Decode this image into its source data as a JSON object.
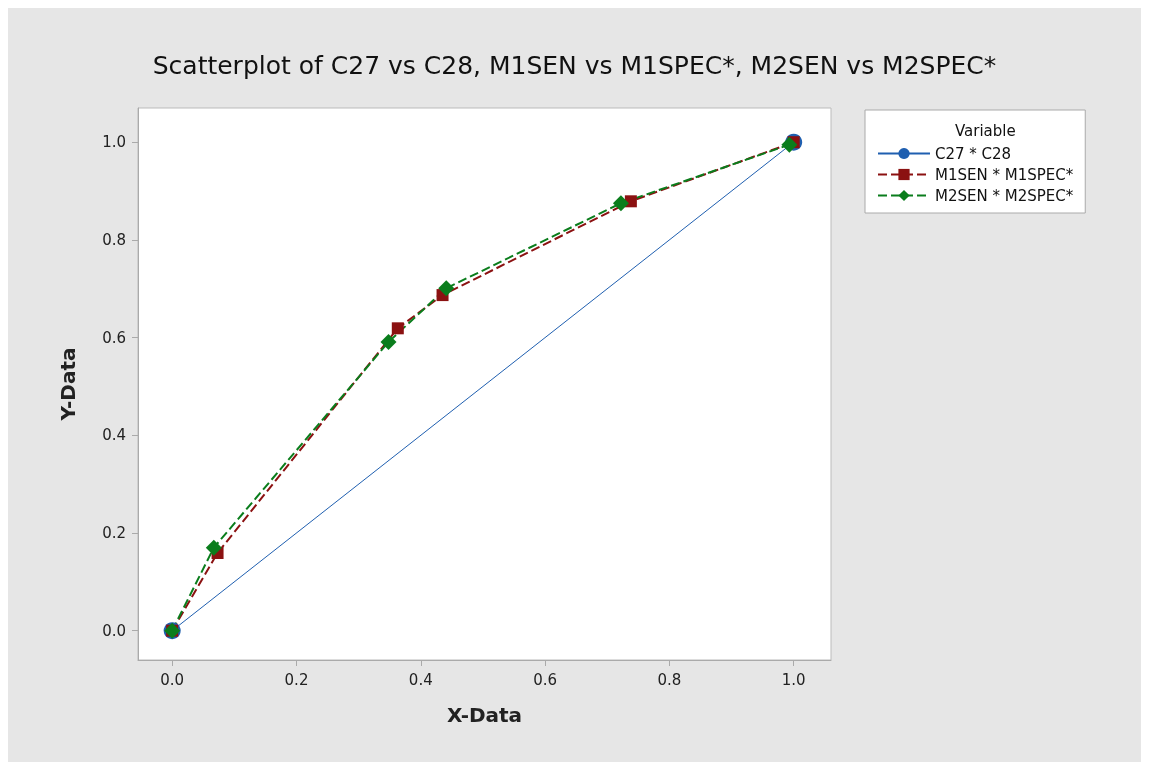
{
  "chart_data": {
    "type": "line",
    "title": "Scatterplot of C27 vs C28, M1SEN vs M1SPEC*, M2SEN vs M2SPEC*",
    "xlabel": "X-Data",
    "ylabel": "Y-Data",
    "legend_title": "Variable",
    "legend": "top right",
    "grid": false,
    "xlim": [
      -0.055,
      1.06
    ],
    "xticks": [
      {
        "value": 0,
        "label": "0.0"
      },
      0.2,
      0.4,
      0.6,
      0.8,
      {
        "value": 1,
        "label": "1.0"
      }
    ],
    "ylim": [
      -0.06,
      1.07
    ],
    "yticks": [
      {
        "value": 0,
        "label": "0.0"
      },
      0.2,
      0.4,
      0.6,
      0.8,
      {
        "value": 1,
        "label": "1.0"
      }
    ],
    "series": [
      {
        "name": "C27 * C28",
        "color": "#1f5fb0",
        "marker": "circle",
        "line_style": "solid",
        "x": [
          0,
          1
        ],
        "values": [
          0,
          1
        ]
      },
      {
        "name": "M1SEN * M1SPEC*",
        "color": "#8b1111",
        "marker": "square",
        "line_style": "dashed",
        "x": [
          0,
          0.073,
          0.363,
          0.435,
          0.738,
          1
        ],
        "values": [
          0,
          0.159,
          0.619,
          0.687,
          0.879,
          1
        ]
      },
      {
        "name": "M2SEN * M2SPEC*",
        "color": "#0a7d1c",
        "marker": "diamond",
        "line_style": "dashed",
        "x": [
          0,
          0.067,
          0.348,
          0.441,
          0.722,
          0.993
        ],
        "values": [
          0,
          0.17,
          0.591,
          0.701,
          0.875,
          0.995
        ]
      }
    ]
  }
}
